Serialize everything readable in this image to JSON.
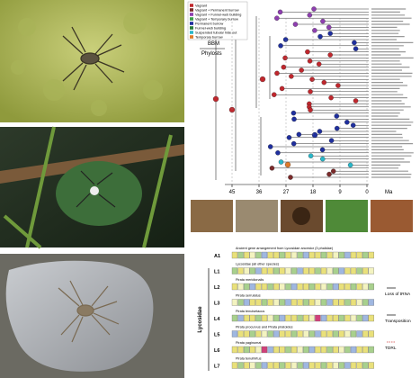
{
  "phylogeny": {
    "legend": [
      {
        "label": "Vagrant",
        "color": "#c0272d"
      },
      {
        "label": "Vagrant + Permanent burrow",
        "color": "#7b2a2a"
      },
      {
        "label": "Vagrant + Funnel-web building",
        "color": "#8e3fb0"
      },
      {
        "label": "Vagrant + Temporary burrow",
        "color": "#3aa04a"
      },
      {
        "label": "Permanent burrow",
        "color": "#1f2f9e"
      },
      {
        "label": "Funnel-web building",
        "color": "#2a7d3a"
      },
      {
        "label": "Suspended tubular hide out",
        "color": "#29b7c9"
      },
      {
        "label": "Temporary burrow",
        "color": "#e07a2a"
      }
    ],
    "method": [
      "BBM",
      "Phylosts"
    ],
    "time_axis": {
      "ticks": [
        "45",
        "36",
        "27",
        "18",
        "9",
        "0"
      ],
      "unit": "Ma"
    }
  },
  "gene_order": {
    "rows": [
      {
        "id": "A1",
        "caption": "Ancient gene arrangement from Lycosidae ancestor (3 phalidae)"
      },
      {
        "id": "L1",
        "caption": "Lycosidae (all other species)"
      },
      {
        "id": "L2",
        "caption": "Pirata meridionalis"
      },
      {
        "id": "L3",
        "caption": "Pirata serrulatus"
      },
      {
        "id": "L4",
        "caption": "Pirata tenuisetacus"
      },
      {
        "id": "L5",
        "caption": "Pirata procurvus and Pirata piratoides"
      },
      {
        "id": "L6",
        "caption": "Pirata yaginumai"
      },
      {
        "id": "L7",
        "caption": "Pirata tenuihirtus"
      }
    ],
    "group": "Lycosidae",
    "key": [
      "Loss of tRNA",
      "Transposition",
      "TDRL"
    ]
  }
}
